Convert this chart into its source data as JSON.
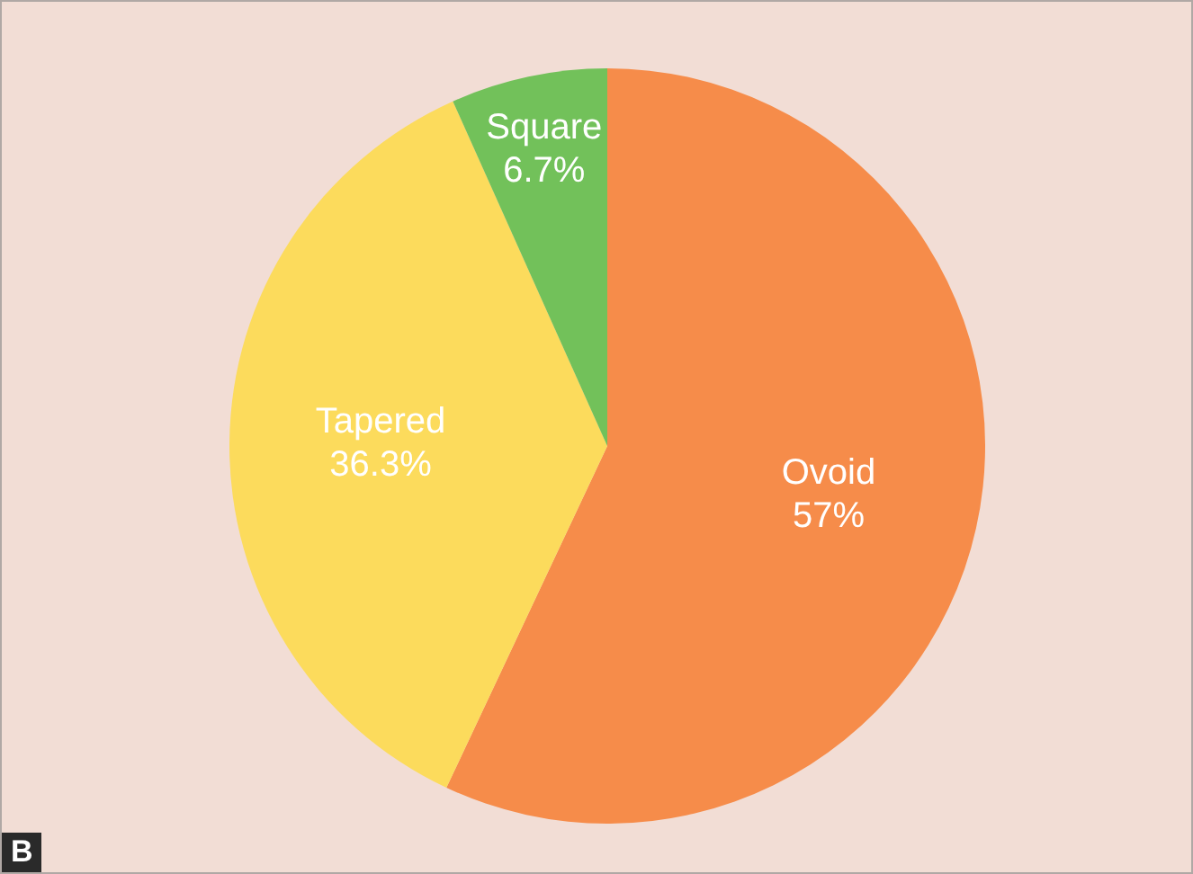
{
  "chart_data": {
    "type": "pie",
    "categories": [
      "Ovoid",
      "Tapered",
      "Square"
    ],
    "values": [
      57,
      36.3,
      6.7
    ],
    "colors": [
      "#f68c4a",
      "#fcdb5c",
      "#72c15a"
    ],
    "value_labels": [
      "57%",
      "36.3%",
      "6.7%"
    ],
    "legend": false,
    "annotations": [
      "B"
    ]
  }
}
